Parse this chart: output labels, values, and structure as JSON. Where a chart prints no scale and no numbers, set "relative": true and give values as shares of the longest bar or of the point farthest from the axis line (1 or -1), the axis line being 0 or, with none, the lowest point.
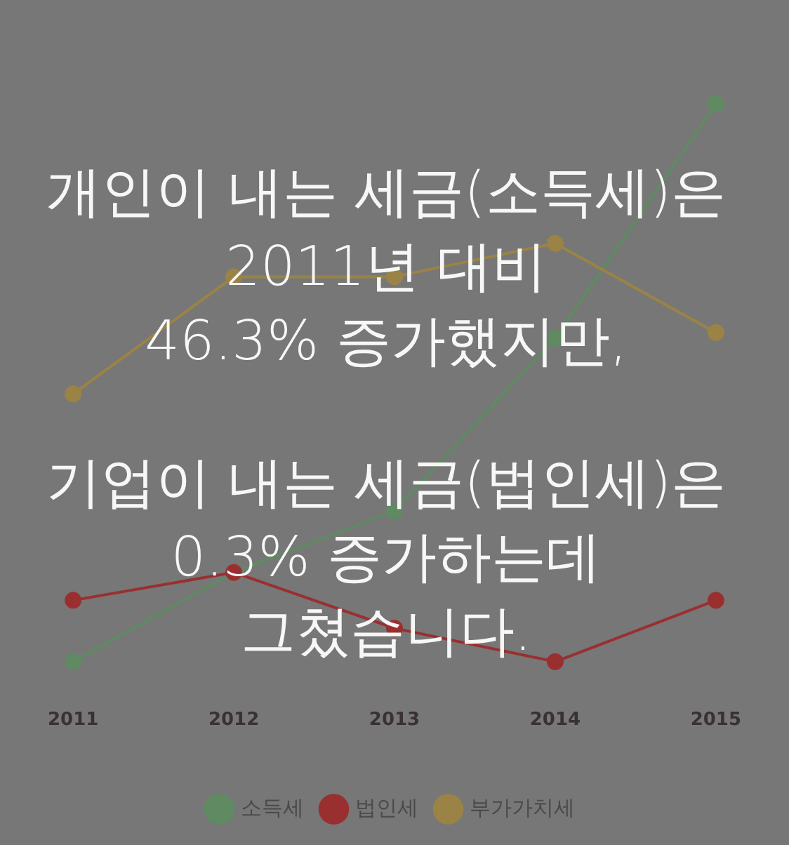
{
  "chart_data": {
    "type": "line",
    "categories": [
      "2011",
      "2012",
      "2013",
      "2014",
      "2015"
    ],
    "series": [
      {
        "name": "소득세",
        "color": "#5f8a62",
        "values": [
          0,
          0.16,
          0.27,
          0.58,
          1
        ]
      },
      {
        "name": "법인세",
        "color": "#9a2f30",
        "values": [
          0.11,
          0.16,
          0.06,
          0,
          0.11
        ]
      },
      {
        "name": "부가가치세",
        "color": "#9a8345",
        "values": [
          0.48,
          0.69,
          0.69,
          0.75,
          0.59
        ]
      }
    ],
    "relative": true,
    "marker": "circle",
    "legend": "bottom",
    "annotations": [
      "개인이 내는 세금(소득세)은\n2011년 대비\n46.3% 증가했지만,",
      "기업이 내는 세금(법인세)은\n0.3% 증가하는데\n그쳤습니다."
    ]
  }
}
